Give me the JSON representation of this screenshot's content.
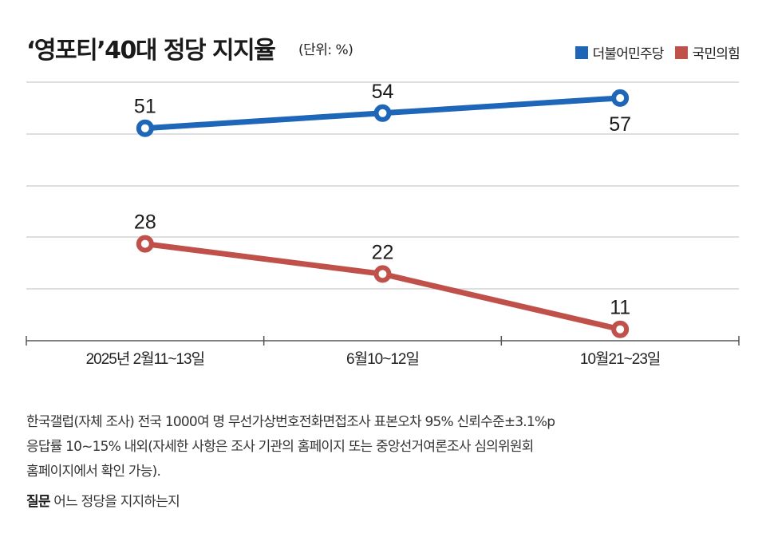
{
  "header": {
    "title": "‘영포티’40대 정당 지지율",
    "unit": "(단위: %)"
  },
  "legend": [
    {
      "label": "더불어민주당",
      "color": "#1e66b8"
    },
    {
      "label": "국민의힘",
      "color": "#c0514a"
    }
  ],
  "chart_data": {
    "type": "line",
    "title": "‘영포티’40대 정당 지지율",
    "subtitle": "(단위: %)",
    "xlabel": "",
    "ylabel": "",
    "categories": [
      "2025년 2월11~13일",
      "6월10~12일",
      "10월21~23일"
    ],
    "series": [
      {
        "name": "더불어민주당",
        "color": "#1e66b8",
        "values": [
          51,
          54,
          57
        ],
        "label_position": [
          "above",
          "above",
          "below"
        ]
      },
      {
        "name": "국민의힘",
        "color": "#c0514a",
        "values": [
          28,
          22,
          11
        ],
        "label_position": [
          "above",
          "above",
          "above"
        ]
      }
    ],
    "grid": true,
    "legend_position": "top-right",
    "y_axis_labels": false
  },
  "notes": {
    "line1": "한국갤럽(자체 조사) 전국 1000여 명 무선가상번호전화면접조사 표본오차 95% 신뢰수준±3.1%p",
    "line2": "응답률 10~15% 내외(자세한 사항은 조사 기관의 홈페이지 또는 중앙선거여론조사 심의위원회",
    "line3": "홈페이지에서 확인 가능).",
    "question_label": "질문",
    "question_text": "어느 정당을 지지하는지"
  }
}
